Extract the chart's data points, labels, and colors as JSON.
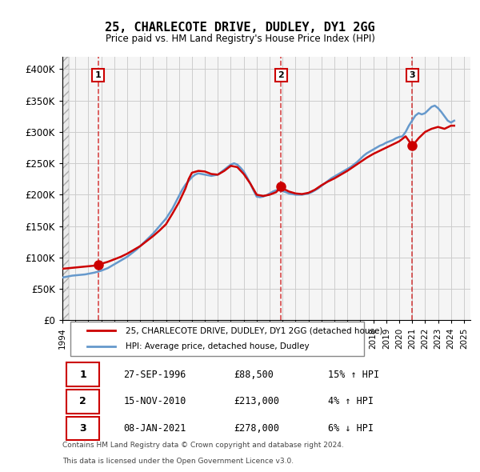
{
  "title": "25, CHARLECOTE DRIVE, DUDLEY, DY1 2GG",
  "subtitle": "Price paid vs. HM Land Registry's House Price Index (HPI)",
  "hpi_label": "HPI: Average price, detached house, Dudley",
  "property_label": "25, CHARLECOTE DRIVE, DUDLEY, DY1 2GG (detached house)",
  "footer1": "Contains HM Land Registry data © Crown copyright and database right 2024.",
  "footer2": "This data is licensed under the Open Government Licence v3.0.",
  "transactions": [
    {
      "num": 1,
      "date": "27-SEP-1996",
      "price": 88500,
      "pct": "15%",
      "dir": "↑"
    },
    {
      "num": 2,
      "date": "15-NOV-2010",
      "price": 213000,
      "pct": "4%",
      "dir": "↑"
    },
    {
      "num": 3,
      "date": "08-JAN-2021",
      "price": 278000,
      "pct": "6%",
      "dir": "↓"
    }
  ],
  "transaction_years": [
    1996.75,
    2010.88,
    2021.02
  ],
  "ylim": [
    0,
    420000
  ],
  "yticks": [
    0,
    50000,
    100000,
    150000,
    200000,
    250000,
    300000,
    350000,
    400000
  ],
  "ytick_labels": [
    "£0",
    "£50K",
    "£100K",
    "£150K",
    "£200K",
    "£250K",
    "£300K",
    "£350K",
    "£400K"
  ],
  "property_color": "#cc0000",
  "hpi_color": "#6699cc",
  "hatch_color": "#cccccc",
  "grid_color": "#cccccc",
  "bg_color": "#f5f5f5",
  "hpi_data": {
    "years": [
      1994.0,
      1994.25,
      1994.5,
      1994.75,
      1995.0,
      1995.25,
      1995.5,
      1995.75,
      1996.0,
      1996.25,
      1996.5,
      1996.75,
      1997.0,
      1997.25,
      1997.5,
      1997.75,
      1998.0,
      1998.25,
      1998.5,
      1998.75,
      1999.0,
      1999.25,
      1999.5,
      1999.75,
      2000.0,
      2000.25,
      2000.5,
      2000.75,
      2001.0,
      2001.25,
      2001.5,
      2001.75,
      2002.0,
      2002.25,
      2002.5,
      2002.75,
      2003.0,
      2003.25,
      2003.5,
      2003.75,
      2004.0,
      2004.25,
      2004.5,
      2004.75,
      2005.0,
      2005.25,
      2005.5,
      2005.75,
      2006.0,
      2006.25,
      2006.5,
      2006.75,
      2007.0,
      2007.25,
      2007.5,
      2007.75,
      2008.0,
      2008.25,
      2008.5,
      2008.75,
      2009.0,
      2009.25,
      2009.5,
      2009.75,
      2010.0,
      2010.25,
      2010.5,
      2010.75,
      2011.0,
      2011.25,
      2011.5,
      2011.75,
      2012.0,
      2012.25,
      2012.5,
      2012.75,
      2013.0,
      2013.25,
      2013.5,
      2013.75,
      2014.0,
      2014.25,
      2014.5,
      2014.75,
      2015.0,
      2015.25,
      2015.5,
      2015.75,
      2016.0,
      2016.25,
      2016.5,
      2016.75,
      2017.0,
      2017.25,
      2017.5,
      2017.75,
      2018.0,
      2018.25,
      2018.5,
      2018.75,
      2019.0,
      2019.25,
      2019.5,
      2019.75,
      2020.0,
      2020.25,
      2020.5,
      2020.75,
      2021.0,
      2021.25,
      2021.5,
      2021.75,
      2022.0,
      2022.25,
      2022.5,
      2022.75,
      2023.0,
      2023.25,
      2023.5,
      2023.75,
      2024.0,
      2024.25
    ],
    "values": [
      68000,
      69000,
      70000,
      71000,
      71500,
      72000,
      72500,
      73000,
      74000,
      75000,
      76000,
      77500,
      79000,
      81000,
      83000,
      86000,
      89000,
      92000,
      95000,
      98000,
      101000,
      105000,
      109000,
      113000,
      118000,
      123000,
      128000,
      133000,
      138000,
      144000,
      150000,
      156000,
      162000,
      170000,
      178000,
      188000,
      198000,
      208000,
      216000,
      222000,
      228000,
      232000,
      234000,
      233000,
      232000,
      231000,
      230000,
      231000,
      232000,
      236000,
      240000,
      244000,
      248000,
      250000,
      248000,
      243000,
      237000,
      228000,
      218000,
      207000,
      197000,
      196000,
      197000,
      199000,
      202000,
      205000,
      207000,
      207000,
      206000,
      204000,
      202000,
      201000,
      200000,
      200000,
      200000,
      201000,
      202000,
      204000,
      207000,
      210000,
      214000,
      218000,
      222000,
      226000,
      229000,
      232000,
      235000,
      238000,
      241000,
      244000,
      248000,
      252000,
      257000,
      262000,
      266000,
      269000,
      272000,
      275000,
      278000,
      280000,
      283000,
      285000,
      287000,
      290000,
      292000,
      293000,
      300000,
      310000,
      318000,
      326000,
      330000,
      328000,
      330000,
      335000,
      340000,
      342000,
      338000,
      332000,
      325000,
      318000,
      315000,
      318000
    ]
  },
  "property_data": {
    "years": [
      1994.0,
      1994.5,
      1995.0,
      1995.5,
      1996.0,
      1996.5,
      1996.75,
      1997.0,
      1997.5,
      1998.0,
      1998.5,
      1999.0,
      1999.5,
      2000.0,
      2000.5,
      2001.0,
      2001.5,
      2002.0,
      2002.5,
      2003.0,
      2003.5,
      2003.75,
      2004.0,
      2004.5,
      2005.0,
      2005.5,
      2006.0,
      2006.5,
      2007.0,
      2007.5,
      2008.0,
      2008.5,
      2009.0,
      2009.5,
      2010.0,
      2010.5,
      2010.88,
      2011.0,
      2011.5,
      2012.0,
      2012.5,
      2013.0,
      2013.5,
      2014.0,
      2014.5,
      2015.0,
      2015.5,
      2016.0,
      2016.5,
      2017.0,
      2017.5,
      2018.0,
      2018.5,
      2019.0,
      2019.5,
      2020.0,
      2020.5,
      2021.02,
      2021.5,
      2022.0,
      2022.5,
      2023.0,
      2023.5,
      2024.0,
      2024.25
    ],
    "values": [
      82000,
      83000,
      84000,
      85000,
      86000,
      87000,
      88500,
      90000,
      93000,
      97000,
      101000,
      106000,
      112000,
      118000,
      126000,
      134000,
      143000,
      153000,
      170000,
      188000,
      210000,
      225000,
      235000,
      238000,
      237000,
      233000,
      232000,
      238000,
      246000,
      244000,
      233000,
      218000,
      200000,
      198000,
      200000,
      204000,
      213000,
      210000,
      205000,
      202000,
      201000,
      203000,
      208000,
      215000,
      221000,
      226000,
      232000,
      238000,
      245000,
      252000,
      259000,
      265000,
      270000,
      275000,
      280000,
      285000,
      293000,
      278000,
      290000,
      300000,
      305000,
      308000,
      305000,
      310000,
      310000
    ]
  },
  "xmin": 1994.0,
  "xmax": 2025.5
}
